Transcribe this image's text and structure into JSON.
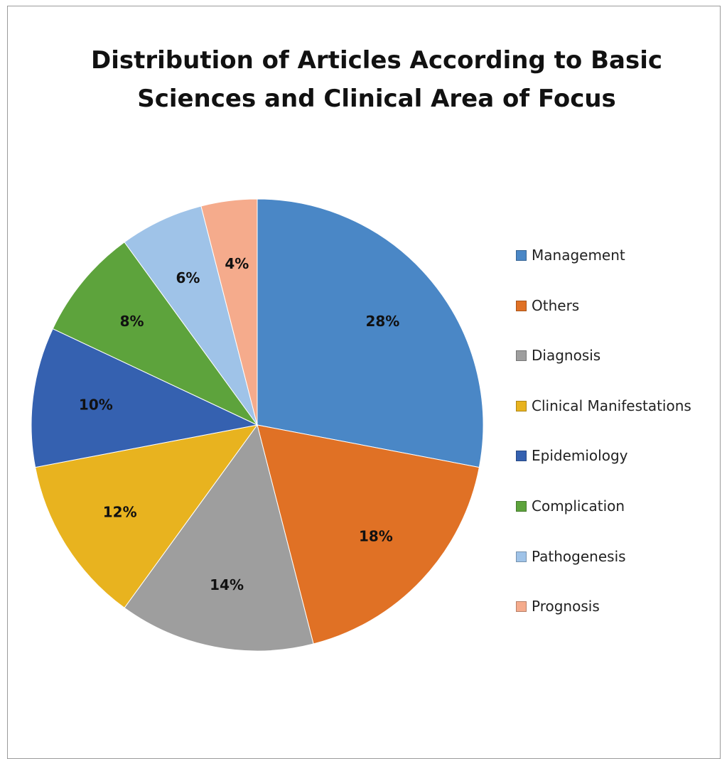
{
  "chart_data": {
    "type": "pie",
    "title": [
      "Distribution of Articles According to Basic",
      "Sciences and Clinical Area of Focus"
    ],
    "legend_position": "right",
    "slices": [
      {
        "label": "Management",
        "value": 28,
        "value_label": "28%",
        "color": "#4a87c6"
      },
      {
        "label": "Others",
        "value": 18,
        "value_label": "18%",
        "color": "#e07125"
      },
      {
        "label": "Diagnosis",
        "value": 14,
        "value_label": "14%",
        "color": "#9e9e9e"
      },
      {
        "label": "Clinical Manifestations",
        "value": 12,
        "value_label": "12%",
        "color": "#e8b31f"
      },
      {
        "label": "Epidemiology",
        "value": 10,
        "value_label": "10%",
        "color": "#3561b0"
      },
      {
        "label": "Complication",
        "value": 8,
        "value_label": "8%",
        "color": "#5da33c"
      },
      {
        "label": "Pathogenesis",
        "value": 6,
        "value_label": "6%",
        "color": "#9fc3e8"
      },
      {
        "label": "Prognosis",
        "value": 4,
        "value_label": "4%",
        "color": "#f5ab8c"
      }
    ]
  }
}
